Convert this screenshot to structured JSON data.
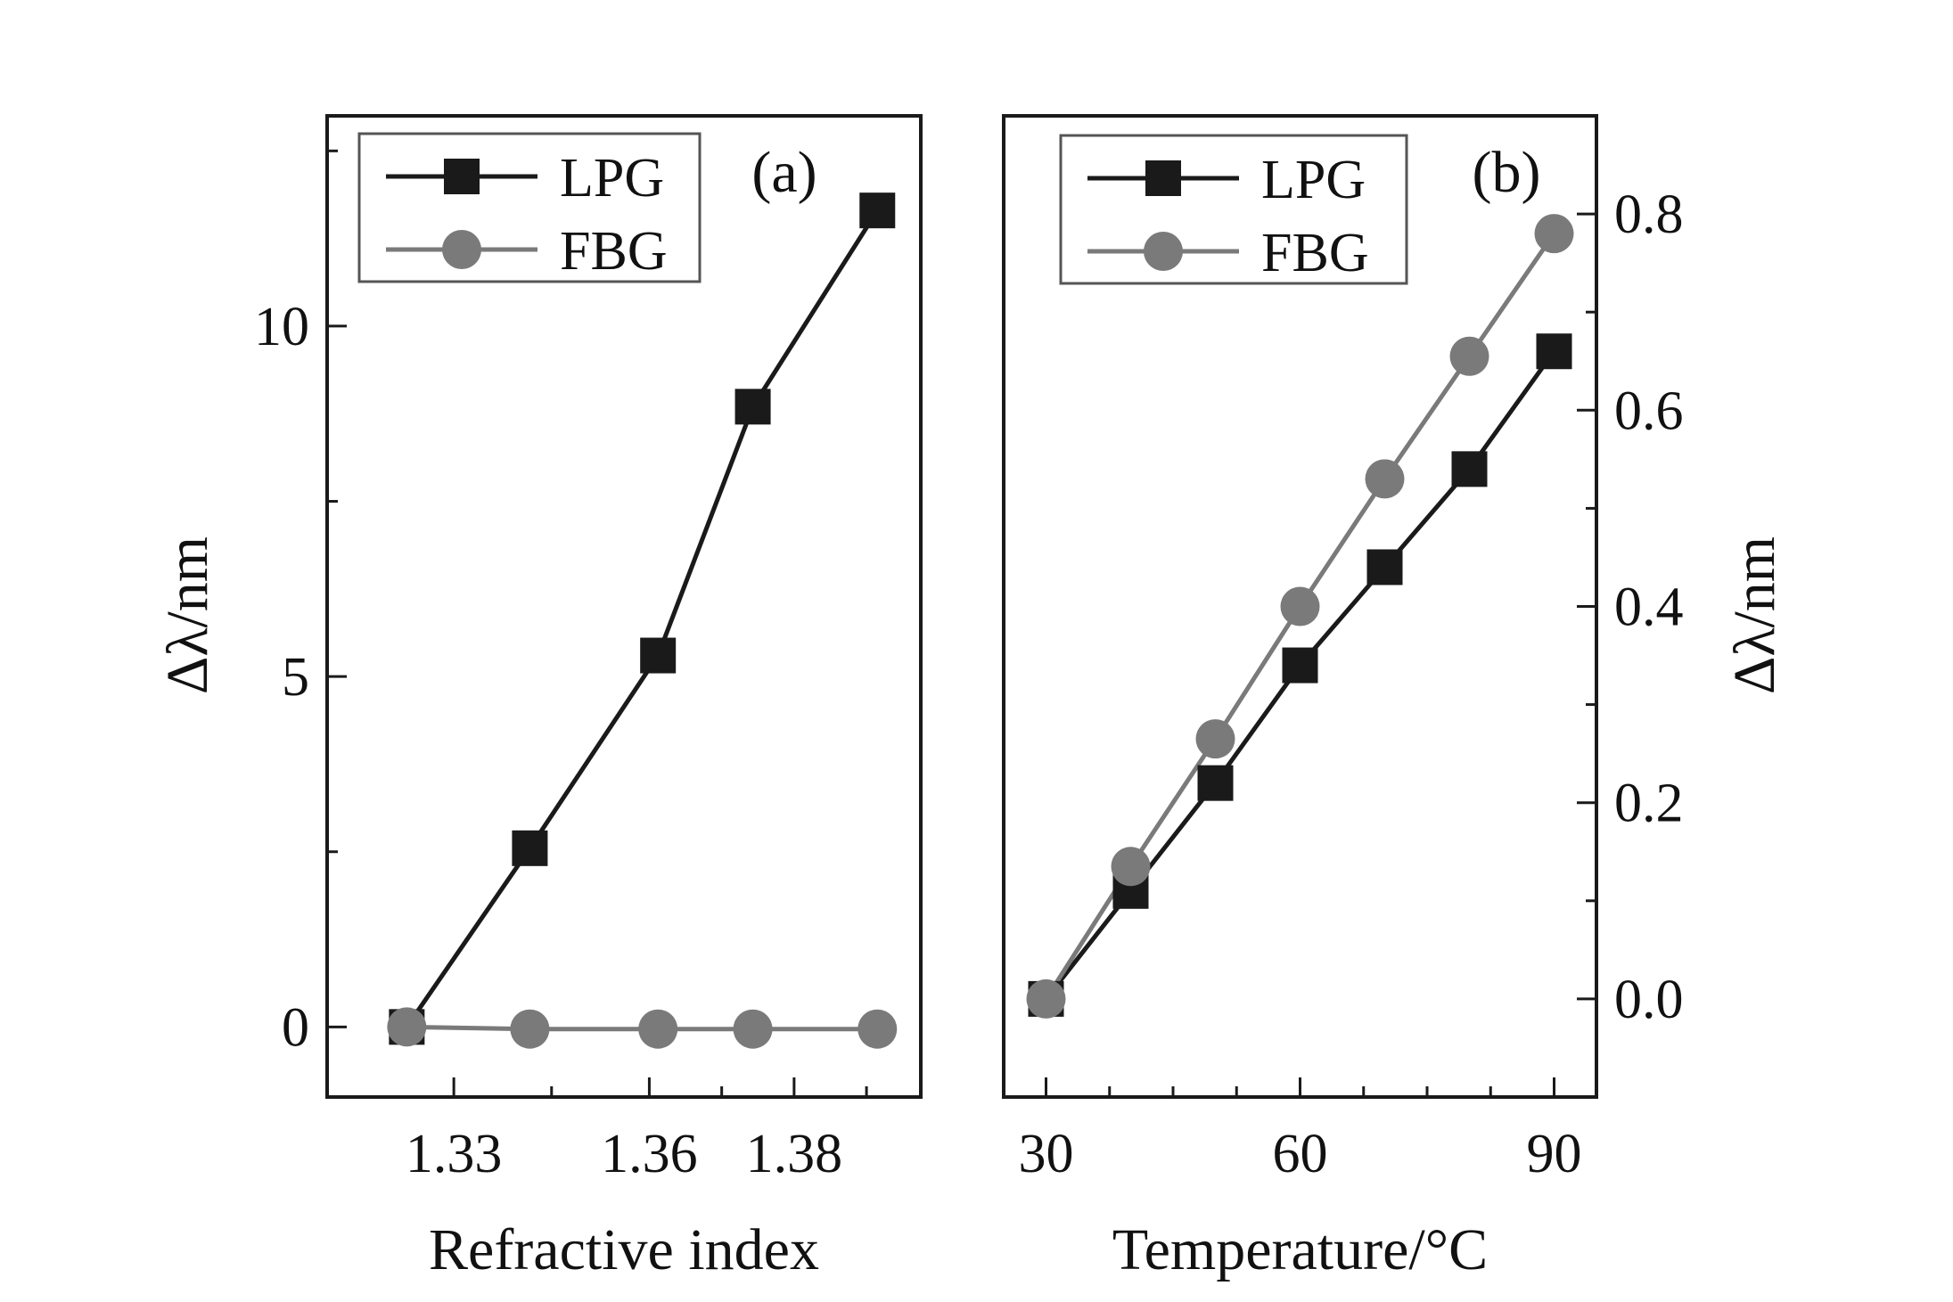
{
  "chart_data": [
    {
      "id": "a",
      "type": "line",
      "panel_label": "(a)",
      "xlabel": "Refractive index",
      "ylabel": "Δλ/nm",
      "ylabel_side": "left",
      "xlim": [
        1.3155,
        1.3975
      ],
      "ylim": [
        -1.0,
        13.0
      ],
      "xticks": [
        1.333,
        1.36,
        1.38
      ],
      "xtick_labels": [
        "1.33",
        "1.36",
        "1.38"
      ],
      "xminor": [
        1.3465,
        1.37,
        1.39
      ],
      "yticks": [
        0,
        5,
        10
      ],
      "ytick_labels": [
        "0",
        "5",
        "10"
      ],
      "yminor": [
        2.5,
        7.5,
        12.5
      ],
      "legend_position": "top-left",
      "series": [
        {
          "name": "LPG",
          "marker": "square",
          "color": "#1a1a1a",
          "x": [
            1.3265,
            1.3435,
            1.3612,
            1.3743,
            1.3915
          ],
          "values": [
            0.0,
            2.55,
            5.3,
            8.85,
            11.65
          ]
        },
        {
          "name": "FBG",
          "marker": "circle",
          "color": "#7a7a7a",
          "x": [
            1.3265,
            1.3435,
            1.3612,
            1.3743,
            1.3915
          ],
          "values": [
            0.0,
            -0.03,
            -0.03,
            -0.03,
            -0.03
          ]
        }
      ]
    },
    {
      "id": "b",
      "type": "line",
      "panel_label": "(b)",
      "xlabel": "Temperature/°C",
      "ylabel": "Δλ/nm",
      "ylabel_side": "right",
      "xlim": [
        25,
        95
      ],
      "ylim": [
        -0.1,
        0.9
      ],
      "xticks": [
        30,
        60,
        90
      ],
      "xtick_labels": [
        "30",
        "60",
        "90"
      ],
      "xminor": [
        37.5,
        45,
        52.5,
        67.5,
        75,
        82.5
      ],
      "yticks": [
        0.0,
        0.2,
        0.4,
        0.6,
        0.8
      ],
      "ytick_labels": [
        "0.0",
        "0.2",
        "0.4",
        "0.6",
        "0.8"
      ],
      "yminor": [
        -0.1,
        0.1,
        0.3,
        0.5,
        0.7,
        0.9
      ],
      "legend_position": "top-left",
      "series": [
        {
          "name": "LPG",
          "marker": "square",
          "color": "#1a1a1a",
          "x": [
            30,
            40,
            50,
            60,
            70,
            80,
            90
          ],
          "values": [
            0.0,
            0.11,
            0.22,
            0.34,
            0.44,
            0.54,
            0.66
          ]
        },
        {
          "name": "FBG",
          "marker": "circle",
          "color": "#7a7a7a",
          "x": [
            30,
            40,
            50,
            60,
            70,
            80,
            90
          ],
          "values": [
            0.0,
            0.135,
            0.265,
            0.4,
            0.53,
            0.655,
            0.78
          ]
        }
      ]
    }
  ]
}
